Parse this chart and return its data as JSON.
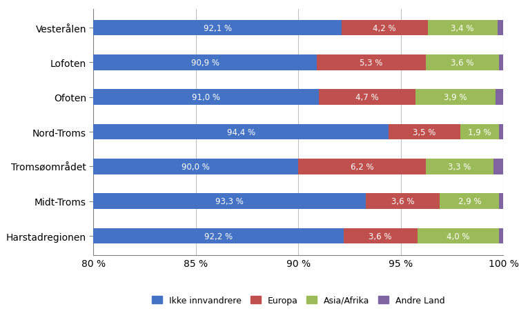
{
  "categories": [
    "Vesterålen",
    "Lofoten",
    "Ofoten",
    "Nord-Troms",
    "Tromsøområdet",
    "Midt-Troms",
    "Harstadregionen"
  ],
  "ikke_innvandrere": [
    92.1,
    90.9,
    91.0,
    94.4,
    90.0,
    93.3,
    92.2
  ],
  "europa": [
    4.2,
    5.3,
    4.7,
    3.5,
    6.2,
    3.6,
    3.6
  ],
  "asia_afrika": [
    3.4,
    3.6,
    3.9,
    1.9,
    3.3,
    2.9,
    4.0
  ],
  "andre_land": [
    0.3,
    0.2,
    0.4,
    0.2,
    0.5,
    0.2,
    0.2
  ],
  "ikke_labels": [
    "92,1 %",
    "90,9 %",
    "91,0 %",
    "94,4 %",
    "90,0 %",
    "93,3 %",
    "92,2 %"
  ],
  "europa_labels": [
    "4,2 %",
    "5,3 %",
    "4,7 %",
    "3,5 %",
    "6,2 %",
    "3,6 %",
    "3,6 %"
  ],
  "asia_labels": [
    "3,4 %",
    "3,6 %",
    "3,9 %",
    "1,9 %",
    "3,3 %",
    "2,9 %",
    "4,0 %"
  ],
  "color_ikke": "#4472C4",
  "color_europa": "#C0504D",
  "color_asia": "#9BBB59",
  "color_andre": "#8064A2",
  "xlim_min": 80,
  "xlim_max": 100,
  "xticks": [
    80,
    85,
    90,
    95,
    100
  ],
  "xtick_labels": [
    "80 %",
    "85 %",
    "90 %",
    "95 %",
    "100 %"
  ],
  "legend_labels": [
    "Ikke innvandrere",
    "Europa",
    "Asia/Afrika",
    "Andre Land"
  ],
  "bar_height": 0.45,
  "background_color": "#FFFFFF",
  "grid_color": "#C0C0C0",
  "label_fontsize": 8.5,
  "tick_fontsize": 10,
  "legend_fontsize": 9,
  "figsize": [
    7.52,
    4.52
  ],
  "dpi": 100
}
